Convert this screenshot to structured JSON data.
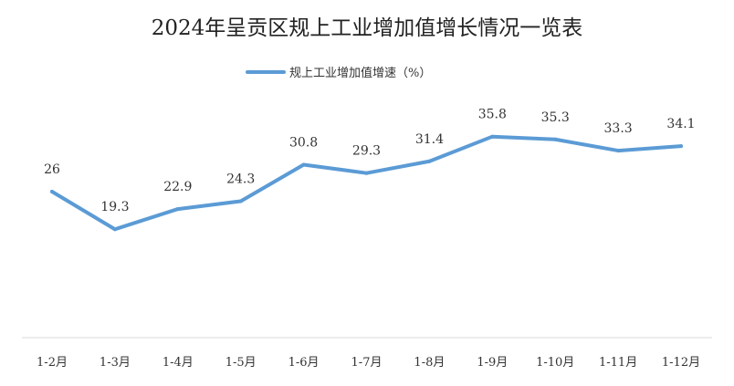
{
  "chart_data": {
    "type": "line",
    "title": "2024年呈贡区规上工业增加值增长情况一览表",
    "legend": "top",
    "grid": false,
    "xlabel": "",
    "ylabel": "",
    "ylim": [
      0,
      40
    ],
    "categories": [
      "1-2月",
      "1-3月",
      "1-4月",
      "1-5月",
      "1-6月",
      "1-7月",
      "1-8月",
      "1-9月",
      "1-10月",
      "1-11月",
      "1-12月"
    ],
    "series": [
      {
        "name": "规上工业增加值增速（%）",
        "color": "#5b9bd5",
        "values": [
          26,
          19.3,
          22.9,
          24.3,
          30.8,
          29.3,
          31.4,
          35.8,
          35.3,
          33.3,
          34.1
        ],
        "labels": [
          "26",
          "19.3",
          "22.9",
          "24.3",
          "30.8",
          "29.3",
          "31.4",
          "35.8",
          "35.3",
          "33.3",
          "34.1"
        ]
      }
    ]
  }
}
